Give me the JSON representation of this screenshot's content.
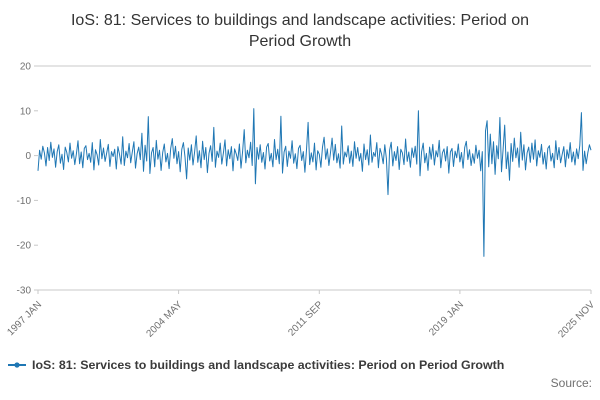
{
  "title": "IoS: 81: Services to buildings and landscape activities: Period on Period Growth",
  "legend_label": "IoS: 81: Services to buildings and landscape activities: Period on Period Growth",
  "source_label": "Source:",
  "colors": {
    "line": "#1f77b4",
    "grid": "#c8c8c8",
    "tick_text": "#707070"
  },
  "chart_data": {
    "type": "line",
    "title": "IoS: 81: Services to buildings and landscape activities: Period on Period Growth",
    "xlabel": "",
    "ylabel": "",
    "ylim": [
      -30,
      20
    ],
    "y_ticks": [
      20,
      10,
      0,
      -10,
      -20,
      -30
    ],
    "x_start": "1997 JAN",
    "x_end": "2025 NOV",
    "x_tick_indices": [
      0,
      88,
      176,
      264,
      346
    ],
    "x_tick_labels": [
      "1997 JAN",
      "2004 MAY",
      "2011 SEP",
      "2019 JAN",
      "2025 NOV"
    ],
    "legend_position": "bottom-left",
    "grid": false,
    "values": [
      -3.4,
      1.2,
      -0.8,
      2.1,
      0.6,
      -2.3,
      1.8,
      -1.1,
      3.0,
      -0.4,
      1.5,
      -2.6,
      0.9,
      2.4,
      -1.7,
      0.3,
      -3.1,
      1.9,
      0.7,
      -1.4,
      2.8,
      -0.6,
      1.1,
      -2.0,
      0.4,
      3.3,
      -1.8,
      0.8,
      -2.7,
      1.6,
      2.2,
      -0.9,
      0.5,
      -1.5,
      2.9,
      -3.2,
      1.3,
      0.2,
      -2.1,
      3.6,
      -0.7,
      1.7,
      -1.3,
      0.6,
      2.5,
      -2.4,
      0.9,
      -0.2,
      1.4,
      -3.0,
      2.0,
      0.3,
      -1.9,
      4.2,
      -2.2,
      1.0,
      -0.5,
      2.7,
      -1.6,
      0.8,
      3.1,
      -2.8,
      0.4,
      1.9,
      -0.9,
      5.0,
      -3.5,
      2.3,
      -1.2,
      8.7,
      -4.0,
      0.6,
      1.8,
      -2.5,
      3.4,
      -0.8,
      1.2,
      -3.3,
      0.7,
      2.6,
      -1.4,
      0.5,
      -2.9,
      1.6,
      3.8,
      -0.6,
      2.1,
      -1.8,
      0.9,
      -3.6,
      1.4,
      2.9,
      -0.3,
      -5.2,
      1.7,
      -1.0,
      2.4,
      -2.1,
      0.8,
      4.4,
      -1.5,
      1.1,
      -2.7,
      3.2,
      -0.9,
      1.8,
      -3.8,
      0.5,
      2.2,
      -1.3,
      6.3,
      -2.6,
      1.0,
      -0.4,
      2.8,
      -1.9,
      0.6,
      3.5,
      -2.3,
      1.3,
      -0.7,
      2.0,
      -3.4,
      1.5,
      0.4,
      -1.1,
      2.6,
      -2.8,
      0.9,
      5.8,
      -1.6,
      1.2,
      -0.5,
      3.0,
      -2.2,
      10.5,
      -6.3,
      1.8,
      -0.8,
      2.4,
      -1.5,
      0.7,
      -3.0,
      1.9,
      2.7,
      -1.2,
      0.5,
      -2.5,
      3.6,
      -0.9,
      1.4,
      -1.8,
      8.8,
      -3.9,
      0.8,
      2.1,
      -2.4,
      1.0,
      -0.6,
      3.3,
      -1.7,
      0.4,
      -2.9,
      1.6,
      2.3,
      -1.1,
      0.9,
      -3.7,
      1.3,
      7.4,
      -2.0,
      0.6,
      -1.4,
      2.8,
      -3.2,
      1.1,
      0.3,
      -2.6,
      1.9,
      4.1,
      -0.8,
      1.5,
      -2.2,
      0.7,
      3.9,
      -1.0,
      2.5,
      -1.6,
      0.4,
      -2.8,
      6.6,
      -1.9,
      0.8,
      -0.3,
      2.2,
      -1.7,
      1.0,
      -2.4,
      3.1,
      -0.6,
      1.8,
      -1.2,
      0.5,
      -3.5,
      2.6,
      -0.9,
      1.3,
      -2.1,
      4.6,
      -1.5,
      0.7,
      -0.2,
      2.9,
      -2.7,
      1.6,
      0.3,
      -1.8,
      2.4,
      -0.7,
      -8.7,
      1.2,
      3.0,
      -2.3,
      0.9,
      -1.1,
      2.0,
      -3.1,
      1.4,
      0.6,
      -2.0,
      3.7,
      -1.3,
      0.8,
      -2.6,
      1.7,
      -0.4,
      2.1,
      -1.9,
      10.0,
      -4.5,
      0.9,
      2.8,
      -1.6,
      0.5,
      -3.3,
      1.9,
      -0.8,
      2.5,
      -2.1,
      1.1,
      -0.3,
      3.4,
      -2.7,
      0.6,
      1.5,
      -1.2,
      2.0,
      -3.9,
      0.8,
      1.6,
      -2.4,
      1.0,
      -0.5,
      2.6,
      -1.4,
      0.7,
      -2.8,
      1.8,
      3.2,
      -0.9,
      1.3,
      -2.2,
      0.4,
      -1.7,
      2.3,
      -0.6,
      1.2,
      -3.4,
      0.9,
      -22.5,
      5.5,
      7.8,
      -2.5,
      4.8,
      -1.8,
      3.1,
      -4.2,
      2.2,
      -0.7,
      8.5,
      -3.6,
      1.4,
      6.8,
      -2.9,
      0.8,
      -5.5,
      2.7,
      -1.3,
      3.9,
      -0.5,
      1.7,
      -2.6,
      5.2,
      -1.0,
      2.4,
      -3.2,
      0.6,
      1.9,
      -1.5,
      2.8,
      -0.8,
      3.5,
      -2.3,
      1.1,
      -0.4,
      2.5,
      -1.9,
      0.7,
      -3.0,
      1.6,
      2.2,
      -1.2,
      0.5,
      -2.7,
      3.3,
      -0.9,
      1.8,
      -1.6,
      0.3,
      2.0,
      -2.5,
      1.3,
      -0.6,
      2.9,
      -1.4,
      0.8,
      -2.1,
      1.5,
      -0.7,
      2.3,
      9.6,
      -3.3,
      1.0,
      -1.8,
      0.6,
      2.4,
      1.2
    ]
  }
}
